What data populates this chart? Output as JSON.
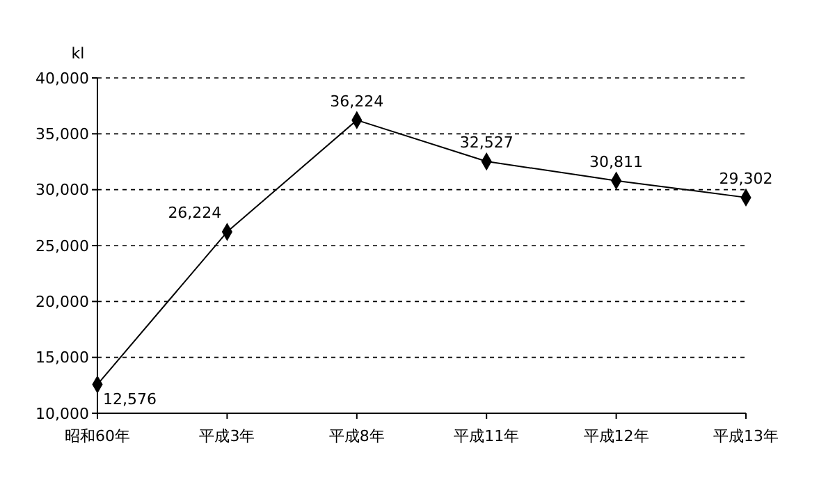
{
  "chart_data": {
    "type": "line",
    "ylabel": "kl",
    "categories": [
      "昭和60年",
      "平成3年",
      "平成8年",
      "平成11年",
      "平成12年",
      "平成13年"
    ],
    "series": [
      {
        "color": "#000000",
        "values": [
          12576,
          26224,
          36224,
          32527,
          30811,
          29302
        ]
      }
    ],
    "value_labels": [
      "12,576",
      "26,224",
      "36,224",
      "32,527",
      "30,811",
      "29,302"
    ],
    "ylim": [
      10000,
      40000
    ],
    "yticks": [
      {
        "value": 10000,
        "label": "10,000"
      },
      {
        "value": 15000,
        "label": "15,000"
      },
      {
        "value": 20000,
        "label": "20,000"
      },
      {
        "value": 25000,
        "label": "25,000"
      },
      {
        "value": 30000,
        "label": "30,000"
      },
      {
        "value": 35000,
        "label": "35,000"
      },
      {
        "value": 40000,
        "label": "40,000"
      }
    ],
    "grid": "y",
    "marker": "diamond",
    "line_style": "solid"
  }
}
